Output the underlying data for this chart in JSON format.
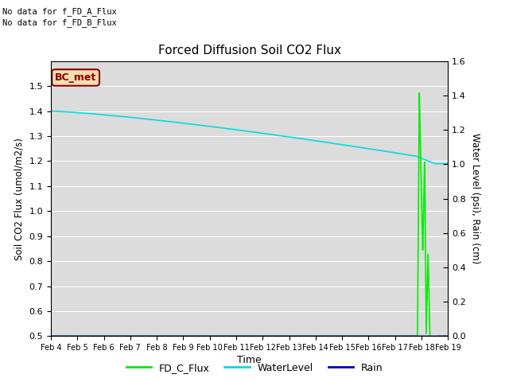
{
  "title": "Forced Diffusion Soil CO2 Flux",
  "xlabel": "Time",
  "ylabel_left": "Soil CO2 Flux (umol/m2/s)",
  "ylabel_right": "Water Level (psi), Rain (cm)",
  "no_data_text1": "No data for f_FD_A_Flux",
  "no_data_text2": "No data for f_FD_B_Flux",
  "bc_met_label": "BC_met",
  "ylim_left": [
    0.5,
    1.6
  ],
  "ylim_right": [
    0.0,
    1.6
  ],
  "yticks_left": [
    0.5,
    0.6,
    0.7,
    0.8,
    0.9,
    1.0,
    1.1,
    1.2,
    1.3,
    1.4,
    1.5
  ],
  "yticks_right": [
    0.0,
    0.2,
    0.4,
    0.6,
    0.8,
    1.0,
    1.2,
    1.4,
    1.6
  ],
  "xtick_labels": [
    "Feb 4",
    "Feb 5",
    "Feb 6",
    "Feb 7",
    "Feb 8",
    "Feb 9",
    "Feb 10",
    "Feb 11",
    "Feb 12",
    "Feb 13",
    "Feb 14",
    "Feb 15",
    "Feb 16",
    "Feb 17",
    "Feb 18",
    "Feb 19"
  ],
  "water_level_color": "#00DDDD",
  "fd_c_flux_color": "#00EE00",
  "rain_color": "#0000BB",
  "background_color": "#DCDCDC",
  "legend_entries": [
    "FD_C_Flux",
    "WaterLevel",
    "Rain"
  ],
  "legend_colors": [
    "#00EE00",
    "#00DDDD",
    "#0000BB"
  ]
}
